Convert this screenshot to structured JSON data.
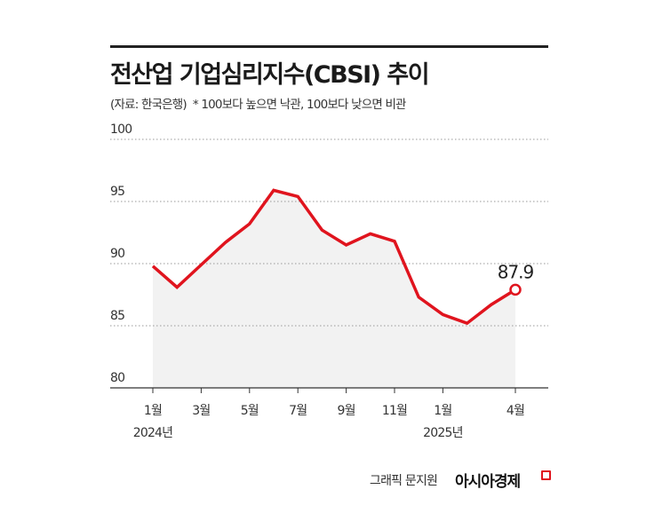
{
  "chart_data": {
    "type": "area",
    "title": "전산업 기업심리지수(CBSI) 추이",
    "subtitle": "(자료: 한국은행)  * 100보다 높으면 낙관, 100보다 낮으면 비관",
    "x": [
      "2024-01",
      "2024-02",
      "2024-03",
      "2024-04",
      "2024-05",
      "2024-06",
      "2024-07",
      "2024-08",
      "2024-09",
      "2024-10",
      "2024-11",
      "2024-12",
      "2025-01",
      "2025-02",
      "2025-03",
      "2025-04"
    ],
    "values": [
      89.8,
      88.1,
      89.9,
      91.7,
      93.2,
      95.9,
      95.4,
      92.7,
      91.5,
      92.4,
      91.8,
      87.3,
      85.9,
      85.2,
      86.7,
      87.9
    ],
    "ylim": [
      80,
      100
    ],
    "yticks": [
      "100",
      "95",
      "90",
      "85",
      "80"
    ],
    "xticks": [
      {
        "index": 0,
        "label": "1월",
        "year": "2024년"
      },
      {
        "index": 2,
        "label": "3월"
      },
      {
        "index": 4,
        "label": "5월"
      },
      {
        "index": 6,
        "label": "7월"
      },
      {
        "index": 8,
        "label": "9월"
      },
      {
        "index": 10,
        "label": "11월"
      },
      {
        "index": 12,
        "label": "1월",
        "year": "2025년"
      },
      {
        "index": 15,
        "label": "4월"
      }
    ],
    "annotation": "87.9",
    "grid": true,
    "colors": {
      "line": "#e0141e",
      "fill": "#f2f2f2",
      "grid": "#999999"
    }
  },
  "footer": {
    "credit": "그래픽 문지원",
    "brand": "아시아경제"
  }
}
